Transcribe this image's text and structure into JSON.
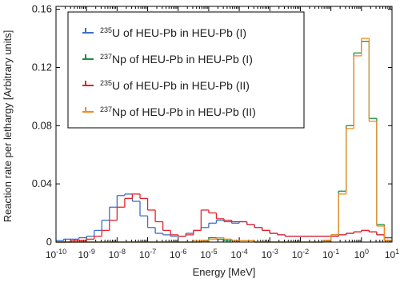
{
  "chart_data": {
    "type": "histogram",
    "x_label": "Energy [MeV]",
    "y_label": "Reaction rate per lethargy [Arbitrary units]",
    "x_log": true,
    "xlim": [
      1e-10,
      10
    ],
    "ylim": [
      0,
      0.162
    ],
    "xticks": [
      {
        "value": 1e-10,
        "label": "10-10"
      },
      {
        "value": 1e-09,
        "label": "10-9"
      },
      {
        "value": 1e-08,
        "label": "10-8"
      },
      {
        "value": 1e-07,
        "label": "10-7"
      },
      {
        "value": 1e-06,
        "label": "10-6"
      },
      {
        "value": 1e-05,
        "label": "10-5"
      },
      {
        "value": 0.0001,
        "label": "10-4"
      },
      {
        "value": 0.001,
        "label": "10-3"
      },
      {
        "value": 0.01,
        "label": "10-2"
      },
      {
        "value": 0.1,
        "label": "10-1"
      },
      {
        "value": 1,
        "label": "100"
      },
      {
        "value": 10,
        "label": "101"
      }
    ],
    "yticks": [
      0,
      0.04,
      0.08,
      0.12,
      0.16
    ],
    "legend": "upper left",
    "bins": [
      1e-10,
      1.778e-10,
      3.162e-10,
      5.623e-10,
      1e-09,
      1.778e-09,
      3.162e-09,
      5.623e-09,
      1e-08,
      1.778e-08,
      3.162e-08,
      5.623e-08,
      1e-07,
      1.778e-07,
      3.162e-07,
      5.623e-07,
      1e-06,
      1.778e-06,
      3.162e-06,
      5.623e-06,
      1e-05,
      1.778e-05,
      3.162e-05,
      5.623e-05,
      0.0001,
      0.0001778,
      0.0003162,
      0.0005623,
      0.001,
      0.001778,
      0.003162,
      0.005623,
      0.01,
      0.01778,
      0.03162,
      0.05623,
      0.1,
      0.1778,
      0.3162,
      0.5623,
      1,
      1.778,
      3.162,
      5.623,
      10
    ],
    "series": [
      {
        "name": "235U of HEU-Pb in HEU-Pb (I)",
        "color": "#3b6fc6",
        "values": [
          0.001,
          0.002,
          0.002,
          0.003,
          0.004,
          0.008,
          0.015,
          0.024,
          0.032,
          0.033,
          0.028,
          0.018,
          0.01,
          0.006,
          0.005,
          0.004,
          0.004,
          0.006,
          0.008,
          0.01,
          0.013,
          0.015,
          0.014,
          0.013,
          0.014,
          0.012,
          0.01,
          0.008,
          0.006,
          0.005,
          0.004,
          0.004,
          0.004,
          0.004,
          0.004,
          0.004,
          0.004,
          0.005,
          0.006,
          0.007,
          0.008,
          0.007,
          0.005,
          0.003
        ]
      },
      {
        "name": "237Np of HEU-Pb in HEU-Pb (I)",
        "color": "#1e8c3c",
        "values": [
          0,
          0,
          0,
          0,
          0,
          0,
          0,
          0,
          0,
          0,
          0,
          0,
          0,
          0,
          0,
          0,
          0,
          0,
          0,
          0.001,
          0.003,
          0.002,
          0.001,
          0.001,
          0.001,
          0.001,
          0,
          0,
          0,
          0,
          0,
          0,
          0,
          0,
          0,
          0.001,
          0.005,
          0.035,
          0.08,
          0.13,
          0.138,
          0.085,
          0.012,
          0.001
        ]
      },
      {
        "name": "235U of HEU-Pb in HEU-Pb (II)",
        "color": "#e8202a",
        "values": [
          0,
          0,
          0.001,
          0.001,
          0.002,
          0.004,
          0.008,
          0.015,
          0.024,
          0.03,
          0.033,
          0.03,
          0.022,
          0.014,
          0.008,
          0.005,
          0.004,
          0.005,
          0.008,
          0.022,
          0.02,
          0.016,
          0.015,
          0.014,
          0.014,
          0.012,
          0.01,
          0.008,
          0.006,
          0.005,
          0.004,
          0.004,
          0.004,
          0.004,
          0.004,
          0.004,
          0.004,
          0.005,
          0.006,
          0.007,
          0.008,
          0.007,
          0.005,
          0.003
        ]
      },
      {
        "name": "237Np of HEU-Pb in HEU-Pb (II)",
        "color": "#f28a22",
        "values": [
          0,
          0,
          0,
          0,
          0,
          0,
          0,
          0,
          0,
          0,
          0,
          0,
          0,
          0,
          0,
          0,
          0,
          0,
          0.001,
          0.001,
          0.002,
          0.003,
          0.002,
          0.001,
          0.001,
          0.001,
          0,
          0,
          0,
          0,
          0,
          0,
          0,
          0,
          0,
          0.001,
          0.005,
          0.033,
          0.078,
          0.128,
          0.14,
          0.083,
          0.011,
          0.001
        ]
      }
    ]
  }
}
